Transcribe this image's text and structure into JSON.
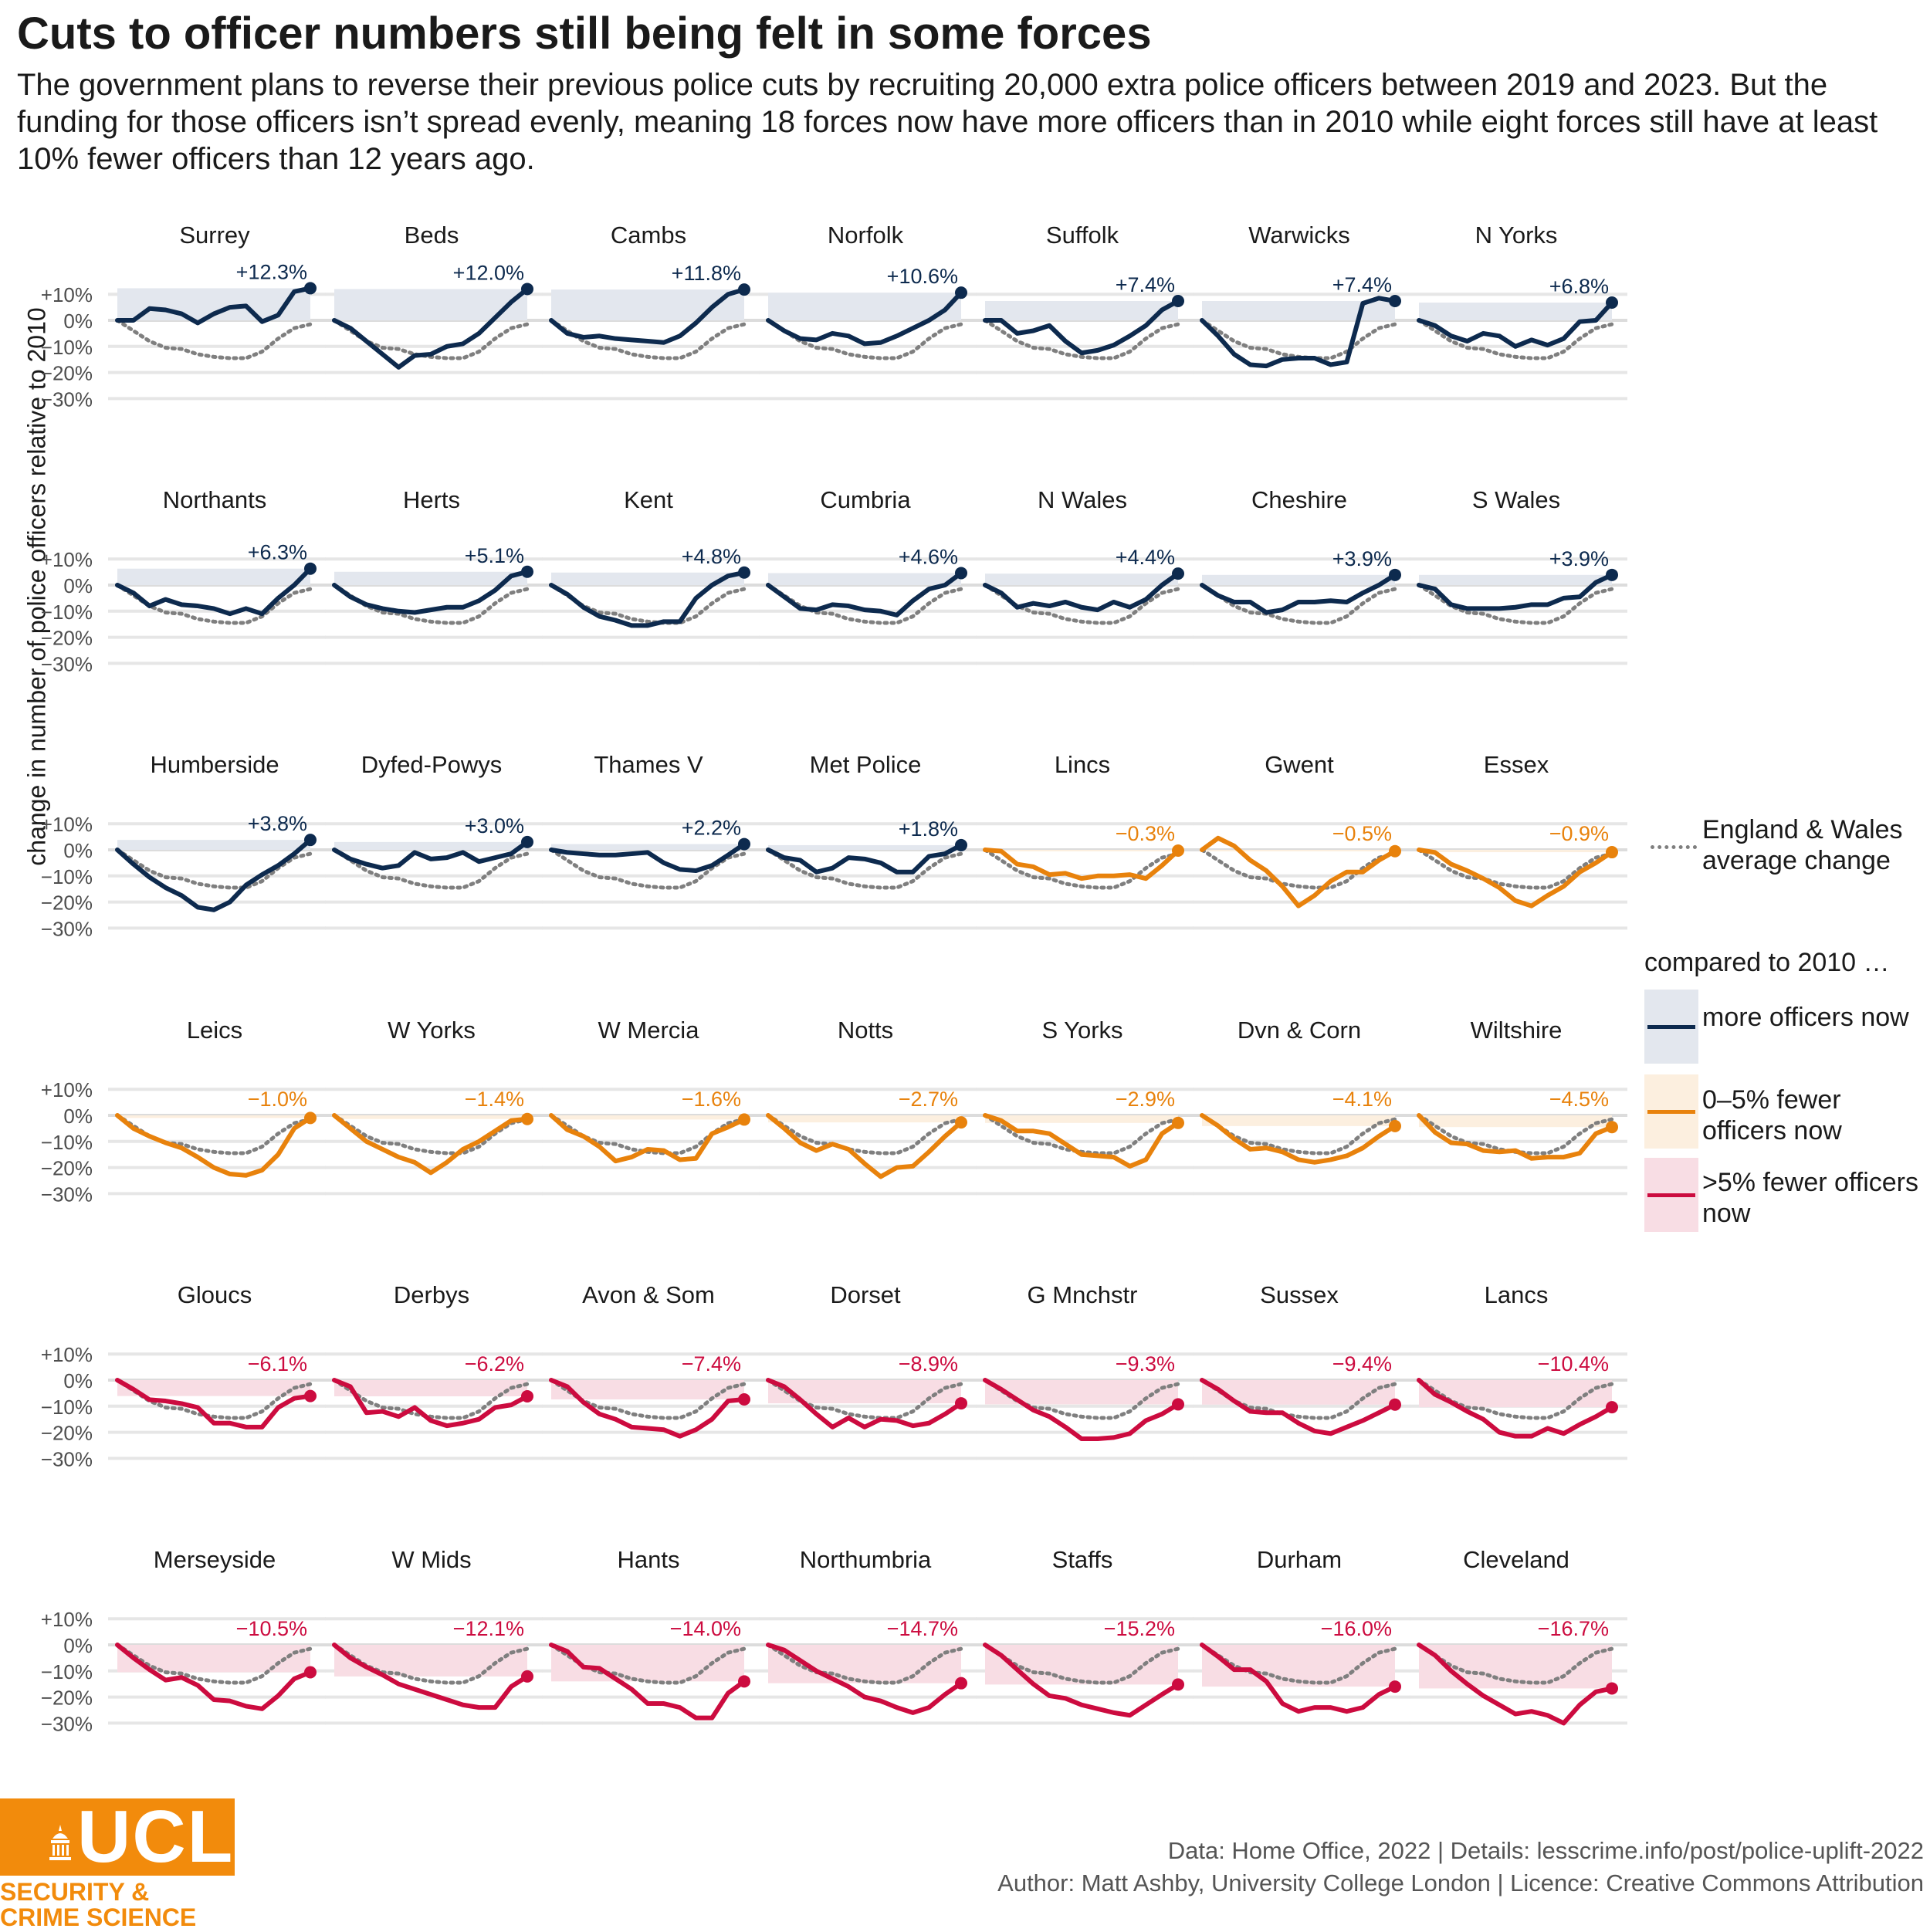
{
  "header": {
    "title": "Cuts to officer numbers still being felt in some forces",
    "subtitle": "The government plans to reverse their previous police cuts by recruiting 20,000 extra police officers between 2019 and 2023. But the funding for those officers isn’t spread evenly, meaning 18 forces now have more officers than in 2010 while eight forces still have at least 10% fewer officers than 12 years ago."
  },
  "legend": {
    "average_label": "England & Wales average change",
    "group_title": "compared to 2010 …",
    "groups": [
      {
        "label": "more officers now",
        "line_color": "#0d2a4e",
        "fill_color": "#e3e7ee"
      },
      {
        "label": "0–5% fewer officers now",
        "line_color": "#e8820c",
        "fill_color": "#fcefdf"
      },
      {
        "label": ">5% fewer officers now",
        "line_color": "#cc0b3f",
        "fill_color": "#f8dde4"
      }
    ]
  },
  "footer": {
    "source": "Data: Home Office, 2022 |  Details: lesscrime.info/post/police-uplift-2022",
    "author": "Author: Matt Ashby, University College London |  Licence: Creative Commons Attribution",
    "logo_text": "UCL",
    "logo_line1": "SECURITY &",
    "logo_line2": "CRIME SCIENCE"
  },
  "chart_data": {
    "type": "line",
    "ylabel": "change in number of police officers relative to 2010",
    "y_tick_labels": [
      "+10%",
      "0%",
      "−10%",
      "−20%",
      "−30%"
    ],
    "y_ticks": [
      10,
      0,
      -10,
      -20,
      -30
    ],
    "ylim": [
      -30,
      12
    ],
    "x_points": 13,
    "england_wales_average": [
      0,
      -4,
      -8,
      -10.5,
      -11,
      -13,
      -14,
      -14.5,
      -14.5,
      -12,
      -7,
      -3,
      -1.5
    ],
    "forces": [
      {
        "name": "Surrey",
        "label": "+12.3%",
        "group": 0,
        "values": [
          0,
          0,
          4.5,
          4,
          2.5,
          -1,
          2.5,
          5,
          5.5,
          -0.5,
          2,
          11,
          12.3
        ]
      },
      {
        "name": "Beds",
        "label": "+12.0%",
        "group": 0,
        "values": [
          0,
          -3,
          -8,
          -13,
          -18,
          -13.5,
          -13,
          -10,
          -9,
          -5,
          1,
          7,
          12
        ]
      },
      {
        "name": "Cambs",
        "label": "+11.8%",
        "group": 0,
        "values": [
          0,
          -5,
          -6.5,
          -6,
          -7,
          -7.5,
          -8,
          -8.5,
          -6,
          -1,
          5,
          10,
          11.8
        ]
      },
      {
        "name": "Norfolk",
        "label": "+10.6%",
        "group": 0,
        "values": [
          0,
          -4,
          -7,
          -7.5,
          -5,
          -6,
          -9,
          -8.5,
          -6,
          -3,
          0,
          4,
          10.6
        ]
      },
      {
        "name": "Suffolk",
        "label": "+7.4%",
        "group": 0,
        "values": [
          0,
          0,
          -5,
          -4,
          -2,
          -8,
          -12.5,
          -11.5,
          -9.5,
          -6,
          -2,
          4,
          7.4
        ]
      },
      {
        "name": "Warwicks",
        "label": "+7.4%",
        "group": 0,
        "values": [
          0,
          -6,
          -13,
          -17,
          -17.5,
          -15,
          -14.5,
          -14.5,
          -17,
          -16,
          6.5,
          8.5,
          7.4
        ]
      },
      {
        "name": "N Yorks",
        "label": "+6.8%",
        "group": 0,
        "values": [
          0,
          -2,
          -6,
          -8,
          -5,
          -6,
          -10,
          -7.5,
          -9.5,
          -7,
          -0.5,
          0,
          6.8
        ]
      },
      {
        "name": "Northants",
        "label": "+6.3%",
        "group": 0,
        "values": [
          0,
          -3,
          -8,
          -5.5,
          -7.5,
          -8,
          -9,
          -11,
          -9,
          -11,
          -5,
          0,
          6.3
        ]
      },
      {
        "name": "Herts",
        "label": "+5.1%",
        "group": 0,
        "values": [
          0,
          -4.5,
          -7.5,
          -9,
          -10,
          -10.5,
          -9.5,
          -8.5,
          -8.5,
          -6,
          -2,
          3.5,
          5.1
        ]
      },
      {
        "name": "Kent",
        "label": "+4.8%",
        "group": 0,
        "values": [
          0,
          -3.5,
          -8.5,
          -12,
          -13.5,
          -15.5,
          -15.5,
          -14,
          -14,
          -5,
          0,
          3.5,
          4.8
        ]
      },
      {
        "name": "Cumbria",
        "label": "+4.6%",
        "group": 0,
        "values": [
          0,
          -4.5,
          -9,
          -9.5,
          -7.5,
          -8,
          -9.5,
          -10,
          -11.5,
          -6,
          -1.5,
          0,
          4.6
        ]
      },
      {
        "name": "N Wales",
        "label": "+4.4%",
        "group": 0,
        "values": [
          0,
          -3,
          -8.5,
          -7,
          -8,
          -6.5,
          -8.5,
          -9.5,
          -6.5,
          -8.5,
          -5.5,
          0,
          4.4
        ]
      },
      {
        "name": "Cheshire",
        "label": "+3.9%",
        "group": 0,
        "values": [
          0,
          -4,
          -6.5,
          -6.5,
          -10.5,
          -9.5,
          -6.5,
          -6.5,
          -6,
          -6.5,
          -3,
          0,
          3.9
        ]
      },
      {
        "name": "S Wales",
        "label": "+3.9%",
        "group": 0,
        "values": [
          0,
          -1.5,
          -7.5,
          -9,
          -9,
          -9,
          -8.5,
          -7.5,
          -7.5,
          -5,
          -4.5,
          1,
          3.9
        ]
      },
      {
        "name": "Humberside",
        "label": "+3.8%",
        "group": 0,
        "values": [
          0,
          -5.5,
          -10.5,
          -14.5,
          -17.5,
          -22,
          -23,
          -20,
          -13.5,
          -9.5,
          -6,
          -1.5,
          3.8
        ]
      },
      {
        "name": "Dyfed-Powys",
        "label": "+3.0%",
        "group": 0,
        "values": [
          0,
          -3.5,
          -5.5,
          -7,
          -6,
          -1,
          -3.5,
          -3,
          -1,
          -4.5,
          -3,
          -1.5,
          3
        ]
      },
      {
        "name": "Thames V",
        "label": "+2.2%",
        "group": 0,
        "values": [
          0,
          -1,
          -1.5,
          -2,
          -2,
          -1.5,
          -1,
          -5,
          -7.5,
          -8,
          -6,
          -2,
          2.2
        ]
      },
      {
        "name": "Met Police",
        "label": "+1.8%",
        "group": 0,
        "values": [
          0,
          -3,
          -4,
          -8.5,
          -7,
          -3,
          -3.5,
          -5,
          -8.5,
          -8.5,
          -2.5,
          -1.5,
          1.8
        ]
      },
      {
        "name": "Lincs",
        "label": "−0.3%",
        "group": 1,
        "values": [
          0,
          -0.5,
          -5.5,
          -6.5,
          -9.5,
          -9,
          -11,
          -10,
          -10,
          -9.5,
          -11,
          -6,
          -0.3
        ]
      },
      {
        "name": "Gwent",
        "label": "−0.5%",
        "group": 1,
        "values": [
          0,
          4.5,
          1.5,
          -4,
          -8,
          -14,
          -21.5,
          -17.5,
          -12,
          -8.5,
          -8.5,
          -4,
          -0.5
        ]
      },
      {
        "name": "Essex",
        "label": "−0.9%",
        "group": 1,
        "values": [
          0,
          -1,
          -5.5,
          -8,
          -11,
          -14.5,
          -19.5,
          -21.5,
          -17.5,
          -14,
          -8.5,
          -5,
          -0.9
        ]
      },
      {
        "name": "Leics",
        "label": "−1.0%",
        "group": 1,
        "values": [
          0,
          -5,
          -8,
          -10.5,
          -12.5,
          -16,
          -20,
          -22.5,
          -23,
          -21,
          -15,
          -5,
          -1
        ]
      },
      {
        "name": "W Yorks",
        "label": "−1.4%",
        "group": 1,
        "values": [
          0,
          -5,
          -10,
          -13,
          -16,
          -18,
          -22,
          -18,
          -13,
          -10,
          -6,
          -2,
          -1.4
        ]
      },
      {
        "name": "W Mercia",
        "label": "−1.6%",
        "group": 1,
        "values": [
          0,
          -5.5,
          -8,
          -12,
          -17.5,
          -16,
          -13,
          -13.5,
          -17,
          -16.5,
          -7,
          -4.5,
          -1.6
        ]
      },
      {
        "name": "Notts",
        "label": "−2.7%",
        "group": 1,
        "values": [
          0,
          -5,
          -10.5,
          -13.5,
          -11,
          -13,
          -18.5,
          -23.5,
          -20,
          -19.5,
          -14,
          -8,
          -2.7
        ]
      },
      {
        "name": "S Yorks",
        "label": "−2.9%",
        "group": 1,
        "values": [
          0,
          -2,
          -6,
          -6,
          -7,
          -11,
          -15,
          -15.5,
          -16,
          -19.5,
          -17,
          -7,
          -2.9
        ]
      },
      {
        "name": "Dvn & Corn",
        "label": "−4.1%",
        "group": 1,
        "values": [
          0,
          -4,
          -9,
          -13,
          -12.5,
          -14,
          -17,
          -18,
          -17,
          -15.5,
          -12.5,
          -8,
          -4.1
        ]
      },
      {
        "name": "Wiltshire",
        "label": "−4.5%",
        "group": 1,
        "values": [
          0,
          -6.5,
          -10.5,
          -11,
          -13.5,
          -14,
          -13.5,
          -16.5,
          -16,
          -16,
          -14.5,
          -7,
          -4.5
        ]
      },
      {
        "name": "Gloucs",
        "label": "−6.1%",
        "group": 2,
        "values": [
          0,
          -3.5,
          -7.5,
          -8,
          -9,
          -10.5,
          -16.5,
          -16.5,
          -18,
          -18,
          -10.5,
          -7,
          -6.1
        ]
      },
      {
        "name": "Derbys",
        "label": "−6.2%",
        "group": 2,
        "values": [
          0,
          -2.5,
          -12.5,
          -12,
          -14,
          -10.5,
          -15.5,
          -17.5,
          -16.5,
          -15,
          -10.5,
          -9.5,
          -6.2
        ]
      },
      {
        "name": "Avon & Som",
        "label": "−7.4%",
        "group": 2,
        "values": [
          0,
          -2.5,
          -8.5,
          -13,
          -15,
          -18,
          -18.5,
          -19,
          -21.5,
          -19,
          -15,
          -8,
          -7.4
        ]
      },
      {
        "name": "Dorset",
        "label": "−8.9%",
        "group": 2,
        "values": [
          0,
          -2.5,
          -7.5,
          -13,
          -18,
          -14.5,
          -18,
          -15,
          -15.5,
          -17.5,
          -16.5,
          -13,
          -8.9
        ]
      },
      {
        "name": "G Mnchstr",
        "label": "−9.3%",
        "group": 2,
        "values": [
          0,
          -3.5,
          -7.5,
          -11.5,
          -14,
          -18,
          -22.5,
          -22.5,
          -22,
          -20.5,
          -15.5,
          -13,
          -9.3
        ]
      },
      {
        "name": "Sussex",
        "label": "−9.4%",
        "group": 2,
        "values": [
          0,
          -3.5,
          -8,
          -12,
          -12.5,
          -12.5,
          -16.5,
          -19.5,
          -20.5,
          -18,
          -15.5,
          -12.5,
          -9.4
        ]
      },
      {
        "name": "Lancs",
        "label": "−10.4%",
        "group": 2,
        "values": [
          0,
          -5.5,
          -8.5,
          -12,
          -15,
          -20,
          -21.5,
          -21.5,
          -18.5,
          -20.5,
          -17,
          -14,
          -10.4
        ]
      },
      {
        "name": "Merseyside",
        "label": "−10.5%",
        "group": 2,
        "values": [
          0,
          -5,
          -9.5,
          -13.5,
          -12.5,
          -15.5,
          -21,
          -21.5,
          -23.5,
          -24.5,
          -19.5,
          -13,
          -10.5
        ]
      },
      {
        "name": "W Mids",
        "label": "−12.1%",
        "group": 2,
        "values": [
          0,
          -5,
          -8.5,
          -11.5,
          -15,
          -17,
          -19,
          -21,
          -23,
          -24,
          -24,
          -16,
          -12.1
        ]
      },
      {
        "name": "Hants",
        "label": "−14.0%",
        "group": 2,
        "values": [
          0,
          -2.5,
          -8.5,
          -9,
          -13,
          -17,
          -22.5,
          -22.5,
          -24,
          -28,
          -28,
          -18.5,
          -14
        ]
      },
      {
        "name": "Northumbria",
        "label": "−14.7%",
        "group": 2,
        "values": [
          0,
          -2,
          -6,
          -10,
          -13,
          -16,
          -20,
          -21.5,
          -24,
          -26,
          -24,
          -19,
          -14.7
        ]
      },
      {
        "name": "Staffs",
        "label": "−15.2%",
        "group": 2,
        "values": [
          0,
          -4,
          -9.5,
          -15,
          -19.5,
          -20.5,
          -23,
          -24.5,
          -26,
          -27,
          -23,
          -19,
          -15.2
        ]
      },
      {
        "name": "Durham",
        "label": "−16.0%",
        "group": 2,
        "values": [
          0,
          -4.5,
          -9.5,
          -9.5,
          -14,
          -22.5,
          -25.5,
          -24,
          -24,
          -25.5,
          -24,
          -19,
          -16
        ]
      },
      {
        "name": "Cleveland",
        "label": "−16.7%",
        "group": 2,
        "values": [
          0,
          -4,
          -10,
          -15,
          -19.5,
          -23,
          -26.5,
          -25.5,
          -27,
          -30,
          -23,
          -18,
          -16.7
        ]
      }
    ]
  }
}
